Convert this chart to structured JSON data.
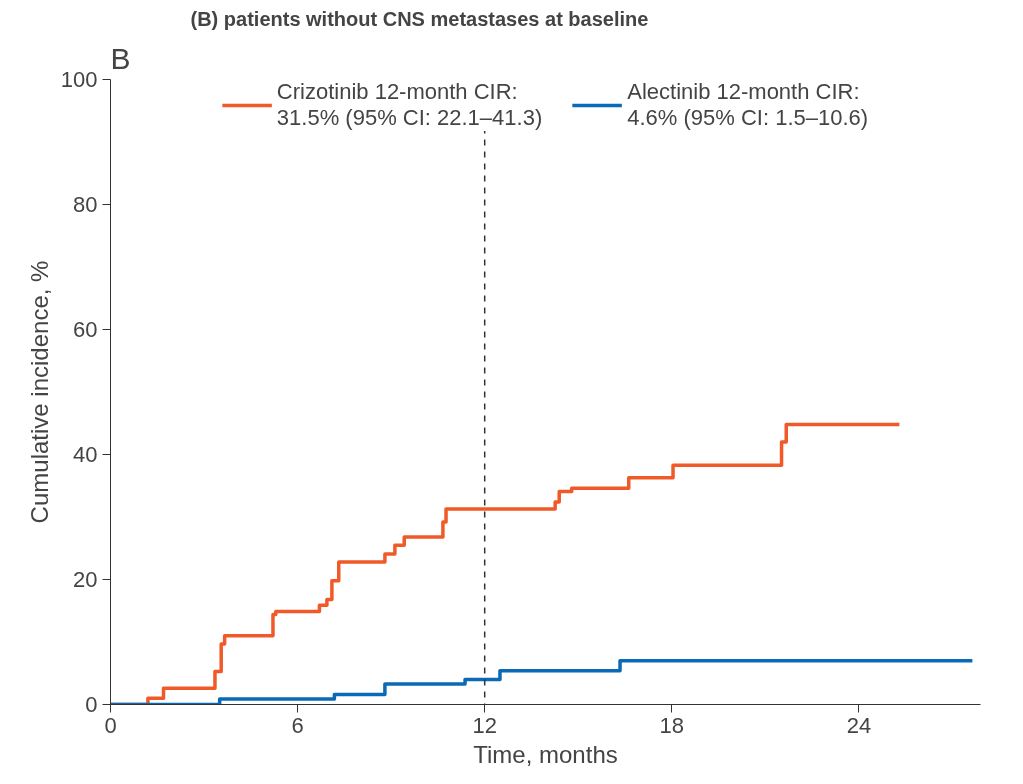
{
  "chart_data": {
    "type": "step",
    "title": "(B) patients without CNS metastases at baseline",
    "xlabel": "Time, months",
    "ylabel": "Cumulative incidence, %",
    "annotations": [
      "B"
    ],
    "xlim": [
      0,
      27.9
    ],
    "ylim": [
      0,
      100
    ],
    "xticks": [
      0,
      6,
      12,
      18,
      24
    ],
    "yticks": [
      0,
      20,
      40,
      60,
      80,
      100
    ],
    "grid": false,
    "legend": "top",
    "line_style": "solid",
    "ref_lines": [
      {
        "axis": "x",
        "value": 12,
        "label": null,
        "color": "#333333",
        "line_style": "dashed"
      }
    ],
    "series": [
      {
        "name": "Crizotinib 12-month CIR:\n31.5% (95% CI: 22.1–41.3)",
        "color": "#f05a28",
        "x": [
          0,
          1.2,
          1.7,
          3.35,
          3.55,
          3.66,
          5.21,
          5.3,
          6.7,
          6.94,
          7.1,
          7.32,
          8.8,
          9.12,
          9.42,
          10.66,
          10.76,
          14.26,
          14.39,
          14.79,
          16.62,
          18.04,
          21.52,
          21.67,
          25.3
        ],
        "values": [
          0,
          1.0,
          2.6,
          5.3,
          9.7,
          11.0,
          14.4,
          14.9,
          15.9,
          16.8,
          19.8,
          22.8,
          24.1,
          25.5,
          26.8,
          29.2,
          31.3,
          32.4,
          34.1,
          34.6,
          36.3,
          38.3,
          42.0,
          44.8,
          44.8
        ]
      },
      {
        "name": "Alectinib 12-month CIR:\n4.6% (95% CI: 1.5–10.6)",
        "color": "#0a6ab6",
        "x": [
          0,
          3.5,
          7.18,
          8.8,
          11.37,
          12.49,
          16.34,
          27.64
        ],
        "values": [
          0,
          0.9,
          1.6,
          3.3,
          4.0,
          5.4,
          7.0,
          7.0
        ]
      }
    ]
  }
}
